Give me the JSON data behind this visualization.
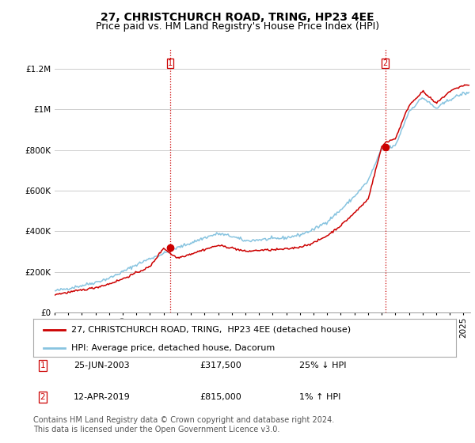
{
  "title": "27, CHRISTCHURCH ROAD, TRING, HP23 4EE",
  "subtitle": "Price paid vs. HM Land Registry's House Price Index (HPI)",
  "ytick_vals": [
    0,
    200000,
    400000,
    600000,
    800000,
    1000000,
    1200000
  ],
  "ylim": [
    0,
    1300000
  ],
  "xlim_start": 1995.0,
  "xlim_end": 2025.5,
  "purchase1_date": 2003.48,
  "purchase1_price": 317500,
  "purchase2_date": 2019.27,
  "purchase2_price": 815000,
  "legend_property": "27, CHRISTCHURCH ROAD, TRING,  HP23 4EE (detached house)",
  "legend_hpi": "HPI: Average price, detached house, Dacorum",
  "property_color": "#cc0000",
  "hpi_color": "#88c4e0",
  "background_color": "#ffffff",
  "grid_color": "#cccccc",
  "vline_color": "#cc0000",
  "title_fontsize": 10,
  "subtitle_fontsize": 9,
  "tick_fontsize": 7.5,
  "legend_fontsize": 8,
  "annot_fontsize": 8,
  "footnote_fontsize": 7
}
